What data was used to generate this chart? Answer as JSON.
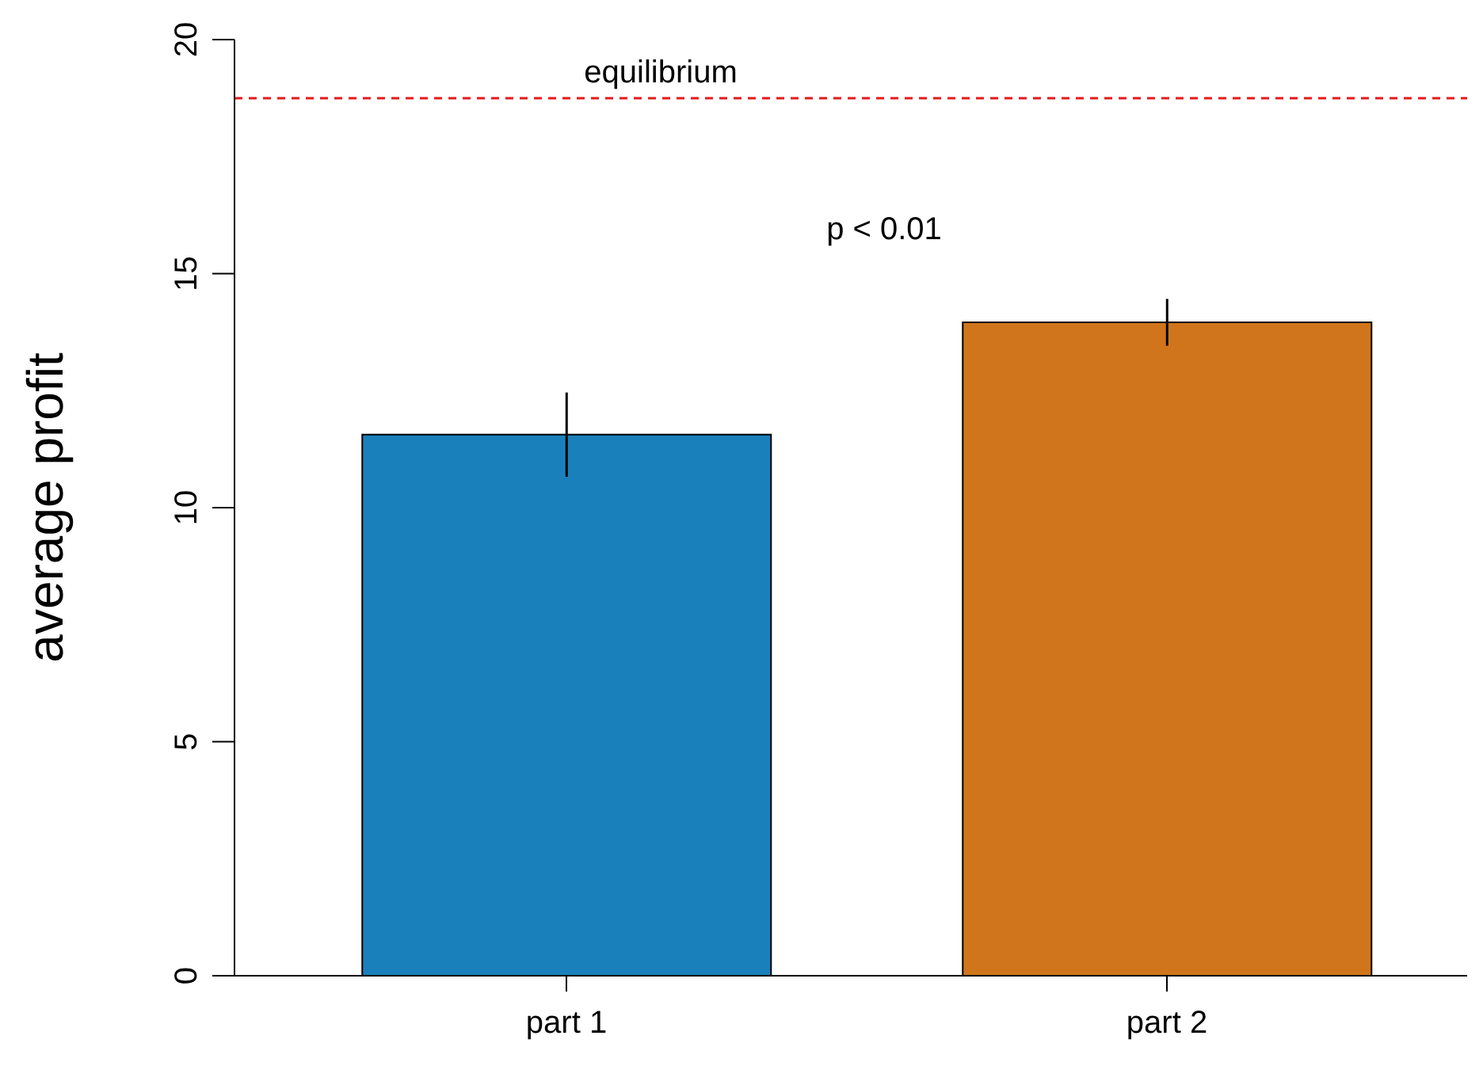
{
  "chart_data": {
    "type": "bar",
    "ylabel": "average profit",
    "categories": [
      "part 1",
      "part 2"
    ],
    "values": [
      11.56,
      13.96
    ],
    "colors": [
      "#1a80bb",
      "#d0751b"
    ],
    "errors": [
      0.9,
      0.5
    ],
    "ylim": [
      0,
      20
    ],
    "yticks": [
      0,
      5,
      10,
      15,
      20
    ],
    "ref_lines": [
      {
        "axis": "y",
        "value": 18.75,
        "label": "equilibrium",
        "color": "#e41a1c",
        "line_style": "dashed"
      }
    ],
    "annotations": [
      "p < 0.01"
    ]
  }
}
